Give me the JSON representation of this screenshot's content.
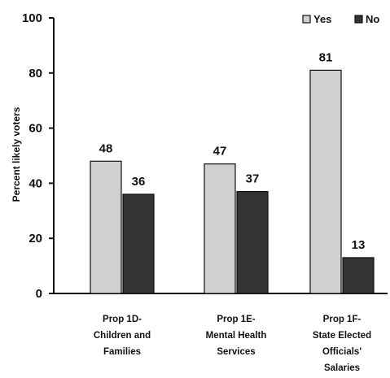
{
  "chart_data": {
    "type": "bar",
    "title": "",
    "xlabel": "",
    "ylabel": "Percent likely voters",
    "ylim": [
      0,
      100
    ],
    "yticks": [
      0,
      20,
      40,
      60,
      80,
      100
    ],
    "categories": [
      [
        "Prop 1D-",
        "Children and",
        "Families"
      ],
      [
        "Prop 1E-",
        "Mental Health",
        "Services"
      ],
      [
        "Prop 1F-",
        "State Elected",
        "Officials'",
        "Salaries"
      ]
    ],
    "series": [
      {
        "name": "Yes",
        "values": [
          48,
          47,
          81
        ],
        "color": "#d0d0d0"
      },
      {
        "name": "No",
        "values": [
          36,
          37,
          13
        ],
        "color": "#333333"
      }
    ],
    "legend": "top-right",
    "grid": false
  }
}
